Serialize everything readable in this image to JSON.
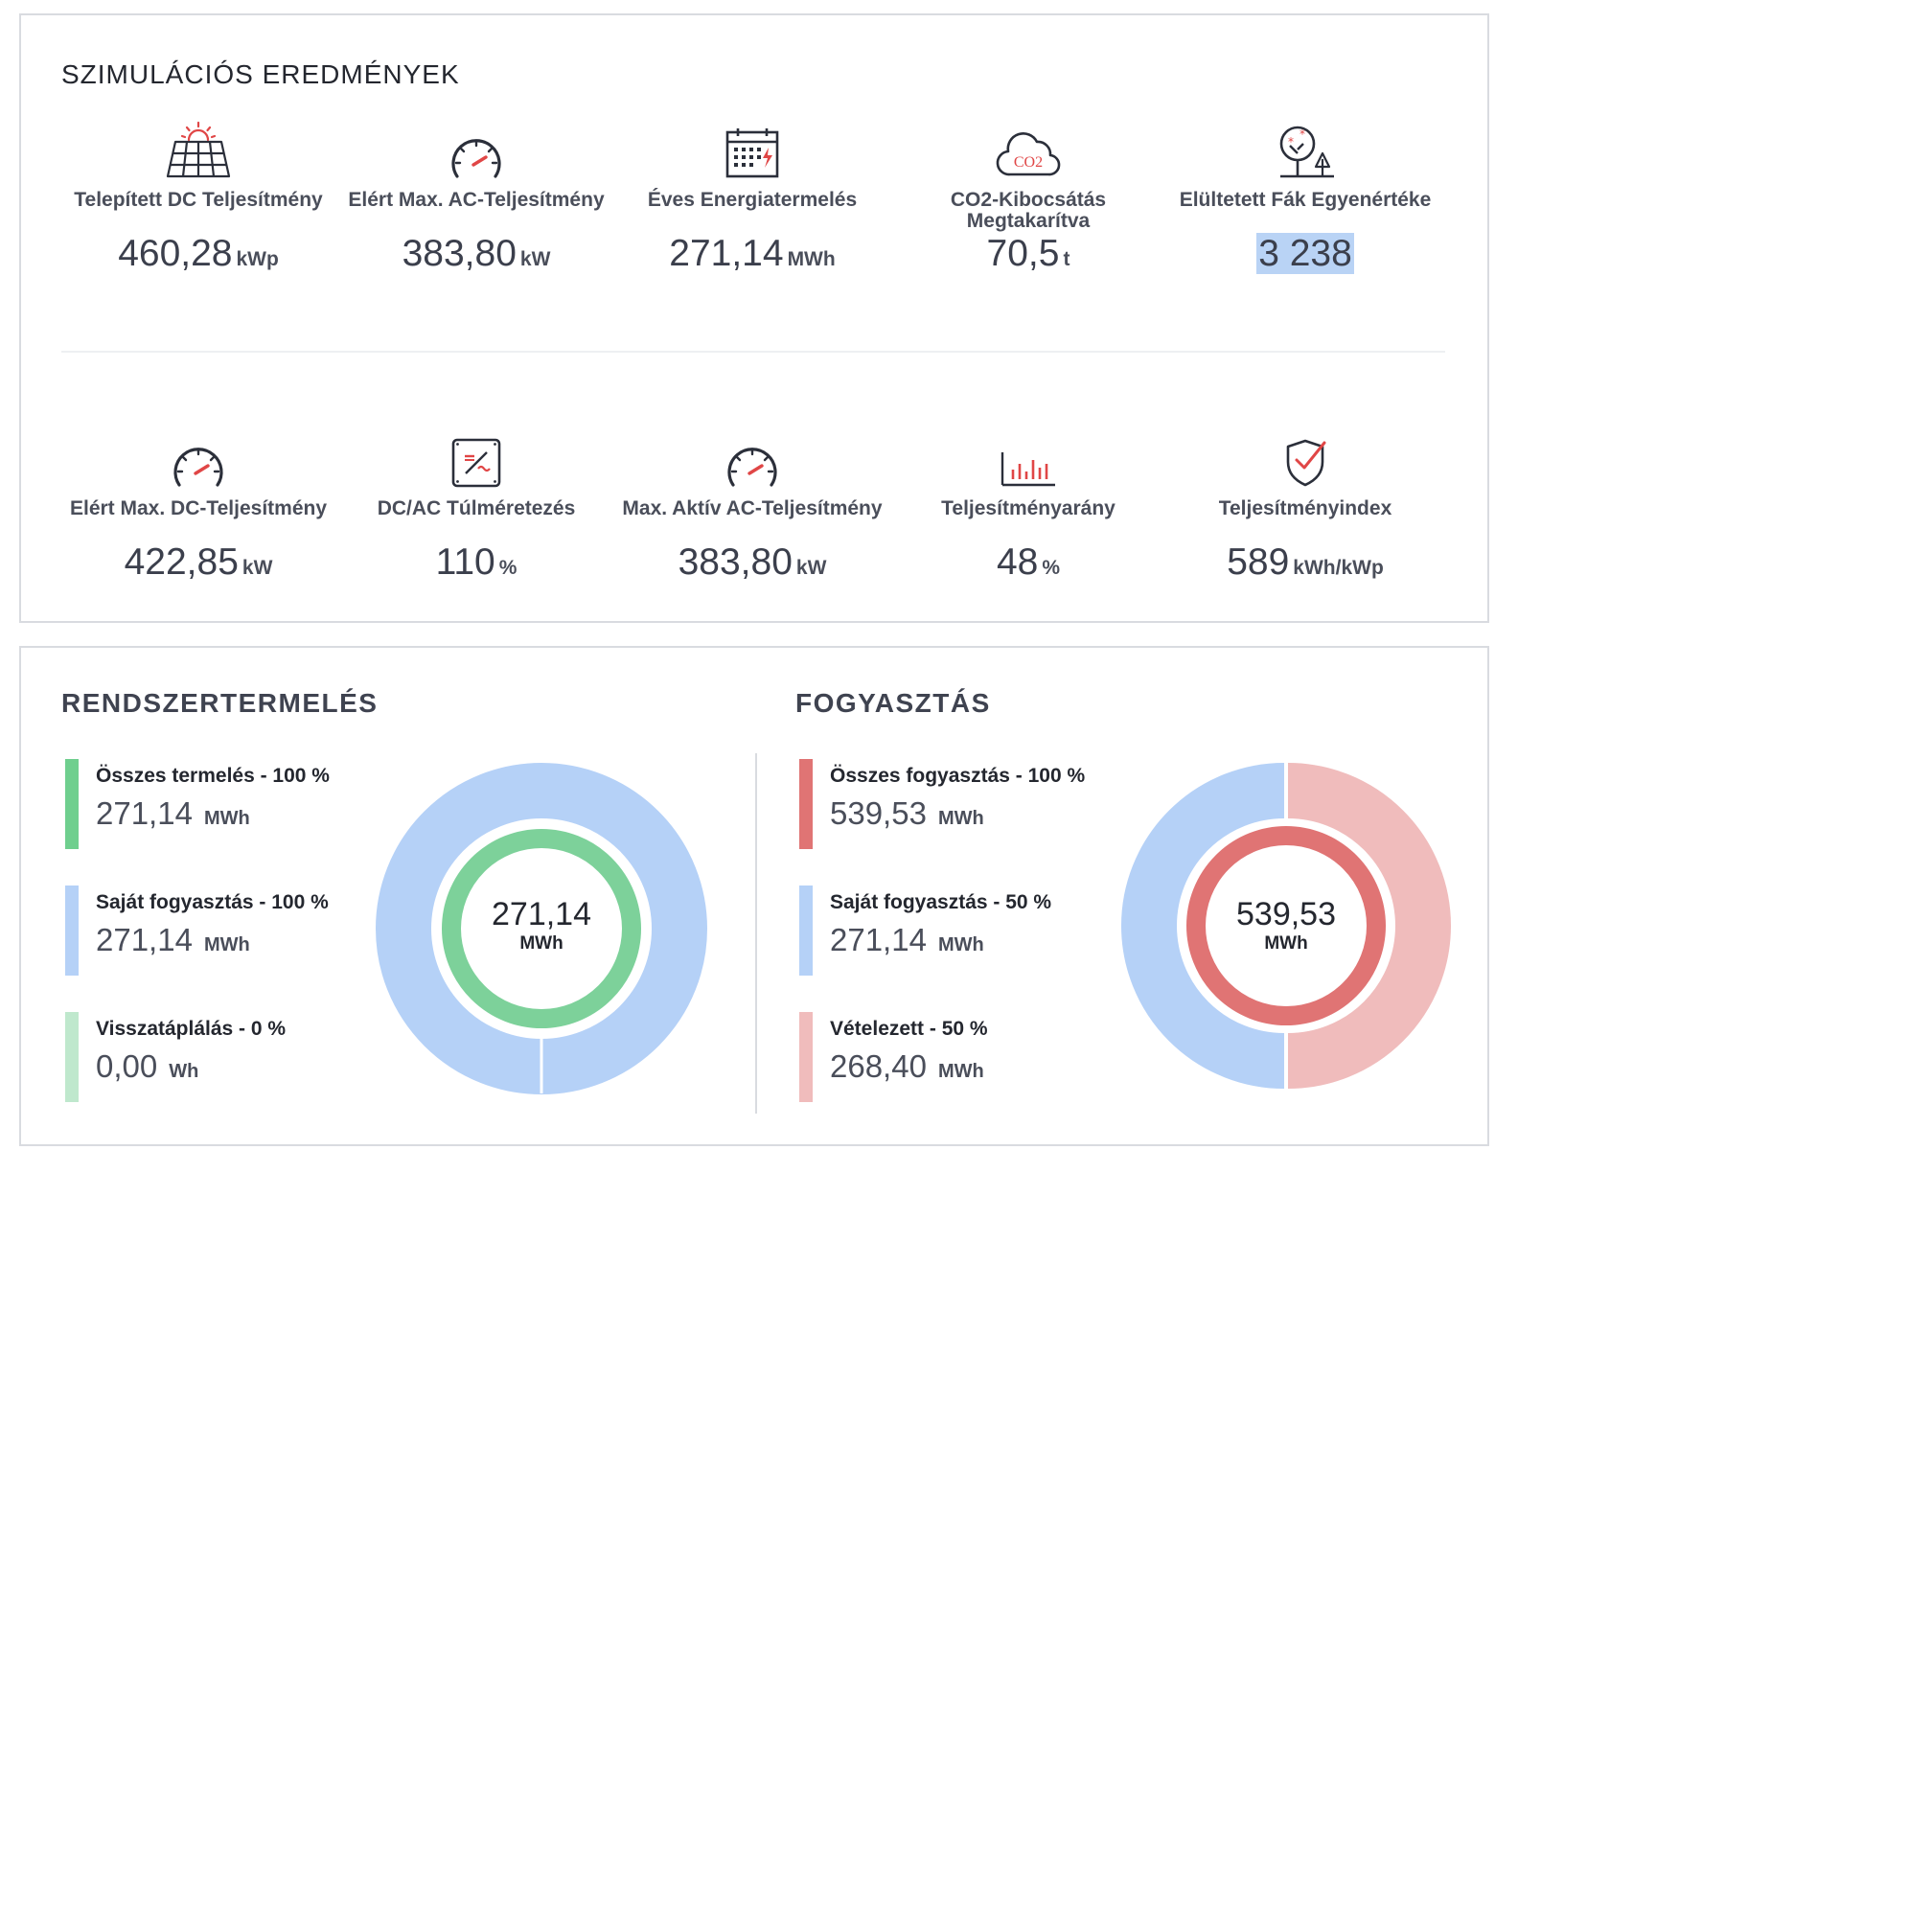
{
  "simulation": {
    "title": "SZIMULÁCIÓS EREDMÉNYEK",
    "row1": [
      {
        "icon": "solar-panel-icon",
        "label": "Telepített DC Teljesítmény",
        "value": "460,28",
        "unit": "kWp"
      },
      {
        "icon": "gauge-icon",
        "label": "Elért Max. AC-Teljesítmény",
        "value": "383,80",
        "unit": "kW"
      },
      {
        "icon": "calendar-energy-icon",
        "label": "Éves Energiatermelés",
        "value": "271,14",
        "unit": "MWh"
      },
      {
        "icon": "co2-cloud-icon",
        "icon_text": "CO2",
        "label": "CO2-Kibocsátás Megtakarítva",
        "value": "70,5",
        "unit": "t"
      },
      {
        "icon": "trees-icon",
        "label": "Elültetett Fák Egyenértéke",
        "value": "3 238",
        "unit": ""
      }
    ],
    "row2": [
      {
        "icon": "gauge-icon",
        "label": "Elért Max. DC-Teljesítmény",
        "value": "422,85",
        "unit": "kW"
      },
      {
        "icon": "inverter-icon",
        "label": "DC/AC Túlméretezés",
        "value": "110",
        "unit": "%"
      },
      {
        "icon": "gauge-icon",
        "label": "Max. Aktív AC-Teljesítmény",
        "value": "383,80",
        "unit": "kW"
      },
      {
        "icon": "bar-chart-icon",
        "label": "Teljesítményarány",
        "value": "48",
        "unit": "%"
      },
      {
        "icon": "shield-check-icon",
        "label": "Teljesítményindex",
        "value": "589",
        "unit": "kWh/kWp"
      }
    ]
  },
  "production": {
    "title": "RENDSZERTERMELÉS",
    "items": [
      {
        "label": "Összes termelés - 100 %",
        "value": "271,14",
        "unit": "MWh",
        "color": "#6fcf8e"
      },
      {
        "label": "Saját fogyasztás - 100 %",
        "value": "271,14",
        "unit": "MWh",
        "color": "#b5d1f7"
      },
      {
        "label": "Visszatáplálás - 0 %",
        "value": "0,00",
        "unit": "Wh",
        "color": "#bfe8cd"
      }
    ],
    "donut": {
      "center_value": "271,14",
      "center_unit": "MWh",
      "outer_share": 1.0,
      "inner_share": 1.0,
      "outer_color": "#b5d1f7",
      "inner_color": "#7dd19a"
    }
  },
  "consumption": {
    "title": "FOGYASZTÁS",
    "items": [
      {
        "label": "Összes fogyasztás - 100 %",
        "value": "539,53",
        "unit": "MWh",
        "color": "#e07474"
      },
      {
        "label": "Saját fogyasztás - 50 %",
        "value": "271,14",
        "unit": "MWh",
        "color": "#b5d1f7"
      },
      {
        "label": "Vételezett - 50 %",
        "value": "268,40",
        "unit": "MWh",
        "color": "#f0bcbc"
      }
    ],
    "donut": {
      "center_value": "539,53",
      "center_unit": "MWh",
      "outer_shares": [
        0.5,
        0.5
      ],
      "outer_colors": [
        "#f0bcbc",
        "#b5d1f7"
      ],
      "inner_color": "#e07474"
    }
  }
}
